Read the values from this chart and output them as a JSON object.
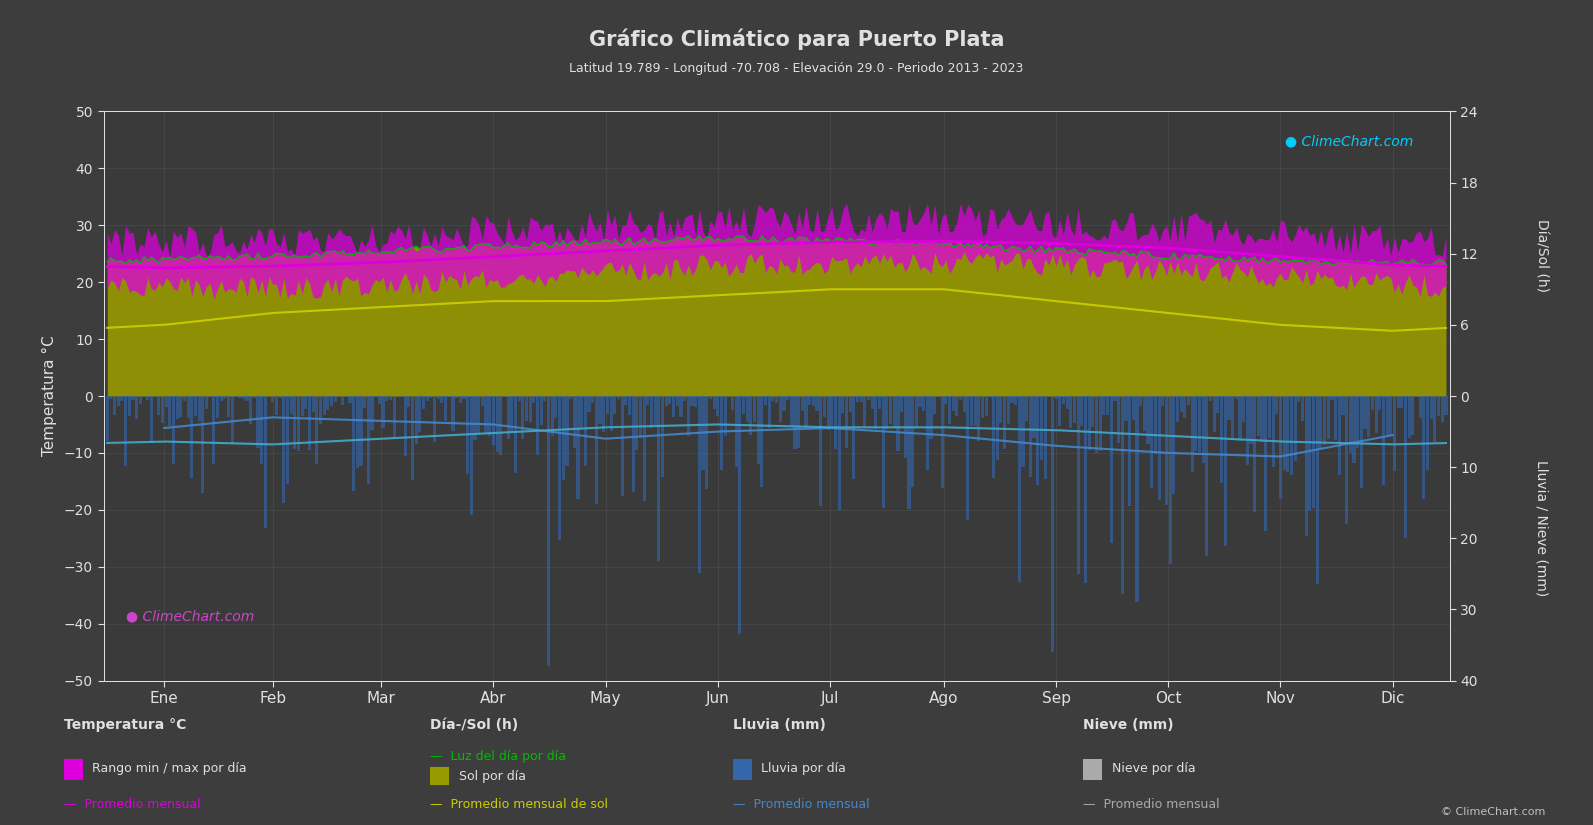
{
  "title": "Gráfico Climático para Puerto Plata",
  "subtitle": "Latitud 19.789 - Longitud -70.708 - Elevación 29.0 - Periodo 2013 - 2023",
  "background_color": "#3d3d3d",
  "plot_bg_color": "#3a3a3a",
  "grid_color": "#555555",
  "text_color": "#e0e0e0",
  "months": [
    "Ene",
    "Feb",
    "Mar",
    "Abr",
    "May",
    "Jun",
    "Jul",
    "Ago",
    "Sep",
    "Oct",
    "Nov",
    "Dic"
  ],
  "temp_ylim_min": -50,
  "temp_ylim_max": 50,
  "temp_avg_monthly": [
    22.5,
    22.8,
    23.5,
    24.5,
    25.5,
    26.5,
    27.0,
    27.2,
    26.8,
    26.0,
    24.5,
    23.0
  ],
  "temp_max_monthly": [
    27.0,
    27.5,
    28.0,
    29.0,
    30.0,
    30.5,
    31.0,
    31.2,
    30.5,
    29.8,
    28.2,
    27.2
  ],
  "temp_min_monthly": [
    19.0,
    19.0,
    19.5,
    20.5,
    21.8,
    23.0,
    23.2,
    23.5,
    23.0,
    22.2,
    21.0,
    19.5
  ],
  "sun_avg_monthly": [
    6.0,
    7.0,
    7.5,
    8.0,
    8.0,
    8.5,
    9.0,
    9.0,
    8.0,
    7.0,
    6.0,
    5.5
  ],
  "daylight_avg_monthly": [
    11.5,
    11.8,
    12.2,
    12.6,
    13.0,
    13.3,
    13.1,
    12.8,
    12.3,
    11.8,
    11.4,
    11.2
  ],
  "rain_daily_avg_mm": [
    4.5,
    3.0,
    3.5,
    4.0,
    6.0,
    5.0,
    4.5,
    5.5,
    7.0,
    8.0,
    8.5,
    5.5
  ],
  "cold_line_monthly": [
    -8.0,
    -8.5,
    -7.5,
    -6.5,
    -5.5,
    -5.0,
    -5.5,
    -5.5,
    -6.0,
    -7.0,
    -8.0,
    -8.5
  ],
  "color_temp_range": "#dd00dd",
  "color_temp_avg": "#dd00dd",
  "color_sun_fill": "#999900",
  "color_sun_avg_line": "#cccc00",
  "color_daylight_line": "#00bb00",
  "color_rain_bar": "#3366aa",
  "color_rain_avg": "#4488cc",
  "color_cold_line": "#44aacc",
  "color_snow_bar": "#aaaaaa",
  "color_snow_avg": "#aaaaaa",
  "sun_axis_max": 24,
  "sun_axis_min": 0,
  "rain_axis_max": 40,
  "rain_axis_min": 0,
  "right_axis_ticks_sun": [
    0,
    6,
    12,
    18,
    24
  ],
  "right_axis_ticks_rain": [
    0,
    10,
    20,
    30,
    40
  ],
  "logo_color_top": "#00ccff",
  "logo_color_bottom": "#cc44cc",
  "copyright_text": "© ClimeChart.com"
}
